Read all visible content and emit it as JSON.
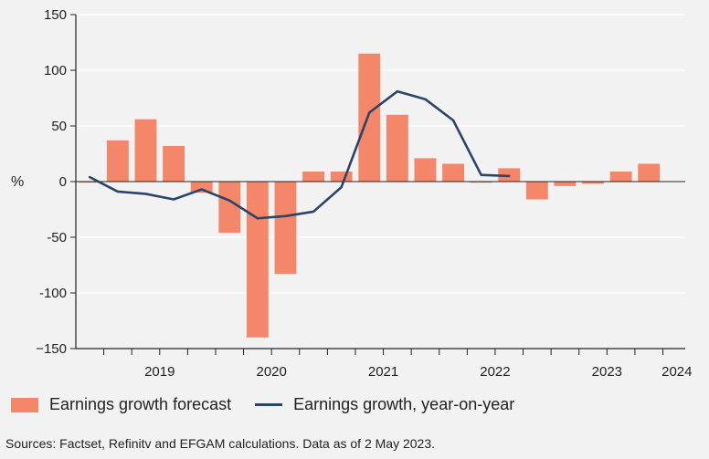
{
  "colors": {
    "bar": "#f4876a",
    "line": "#2c4468",
    "axis": "#222222",
    "grid": "#ffffff"
  },
  "chart_data": {
    "type": "bar+line",
    "title": "",
    "xlabel": "",
    "ylabel": "%",
    "ylim": [
      -150,
      150
    ],
    "yticks": [
      150,
      100,
      50,
      0,
      -50,
      -100,
      -150
    ],
    "ytick_labels": [
      "150",
      "100",
      "50",
      "0",
      "-50",
      "-100",
      "−150"
    ],
    "year_labels": [
      "2019",
      "2020",
      "2021",
      "2022",
      "2023",
      "2024"
    ],
    "quarters": [
      "2018 Q4",
      "2019 Q1",
      "2019 Q2",
      "2019 Q3",
      "2019 Q4",
      "2020 Q1",
      "2020 Q2",
      "2020 Q3",
      "2020 Q4",
      "2021 Q1",
      "2021 Q2",
      "2021 Q3",
      "2021 Q4",
      "2022 Q1",
      "2022 Q2",
      "2022 Q3",
      "2022 Q4",
      "2023 Q1",
      "2023 Q2",
      "2023 Q3",
      "2023 Q4",
      "2024 Q1"
    ],
    "series": [
      {
        "name": "Earnings growth forecast",
        "type": "bar",
        "values": [
          -1,
          37,
          56,
          32,
          -10,
          -46,
          -140,
          -83,
          9,
          9,
          115,
          60,
          21,
          16,
          0,
          12,
          -16,
          -4,
          -2,
          9,
          16,
          null
        ]
      },
      {
        "name": "Earnings growth, year-on-year",
        "type": "line",
        "values": [
          4,
          -9,
          -11,
          -16,
          -7,
          -17,
          -33,
          -31,
          -27,
          -5,
          62,
          81,
          74,
          55,
          6,
          5,
          null,
          null,
          null,
          null,
          null,
          null
        ]
      }
    ]
  },
  "legend": {
    "bar_label": "Earnings growth forecast",
    "line_label": "Earnings growth, year-on-year"
  },
  "source": "Sources: Factset, Refinitv and EFGAM calculations. Data as of 2 May 2023."
}
